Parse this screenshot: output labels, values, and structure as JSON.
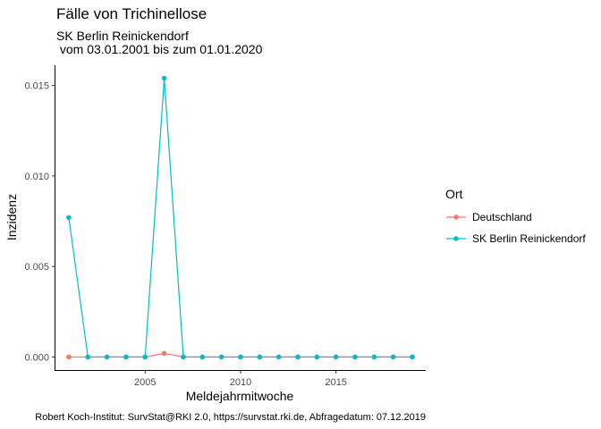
{
  "chart_data": {
    "type": "line",
    "title": "Fälle von Trichinellose",
    "subtitle_line1": "SK Berlin Reinickendorf",
    "subtitle_line2": " vom 03.01.2001 bis zum 01.01.2020",
    "xlabel": "Meldejahrmitwoche",
    "ylabel": "Inzidenz",
    "caption": "Robert Koch-Institut: SurvStat@RKI 2.0, https://survstat.rki.de, Abfragedatum: 07.12.2019",
    "xlim": [
      2000.3,
      2019.7
    ],
    "ylim": [
      -0.00072,
      0.01612
    ],
    "x_ticks": [
      2005,
      2010,
      2015
    ],
    "y_ticks": [
      0.0,
      0.005,
      0.01,
      0.015
    ],
    "y_tick_labels": [
      "0.000",
      "0.005",
      "0.010",
      "0.015"
    ],
    "grid": false,
    "legend": {
      "title": "Ort",
      "placement": "right"
    },
    "x": [
      2001,
      2002,
      2003,
      2004,
      2005,
      2006,
      2007,
      2008,
      2009,
      2010,
      2011,
      2012,
      2013,
      2014,
      2015,
      2016,
      2017,
      2018,
      2019
    ],
    "series": [
      {
        "name": "Deutschland",
        "color": "#F8766D",
        "values": [
          0.0,
          0.0,
          0.0,
          0.0,
          0.0,
          0.0002,
          0.0,
          0.0,
          0.0,
          0.0,
          0.0,
          0.0,
          0.0,
          0.0,
          0.0,
          0.0,
          0.0,
          0.0,
          0.0
        ]
      },
      {
        "name": "SK Berlin Reinickendorf",
        "color": "#00BFC4",
        "values": [
          0.0077,
          0.0,
          0.0,
          0.0,
          0.0,
          0.0154,
          0.0,
          0.0,
          0.0,
          0.0,
          0.0,
          0.0,
          0.0,
          0.0,
          0.0,
          0.0,
          0.0,
          0.0,
          0.0
        ]
      }
    ]
  }
}
